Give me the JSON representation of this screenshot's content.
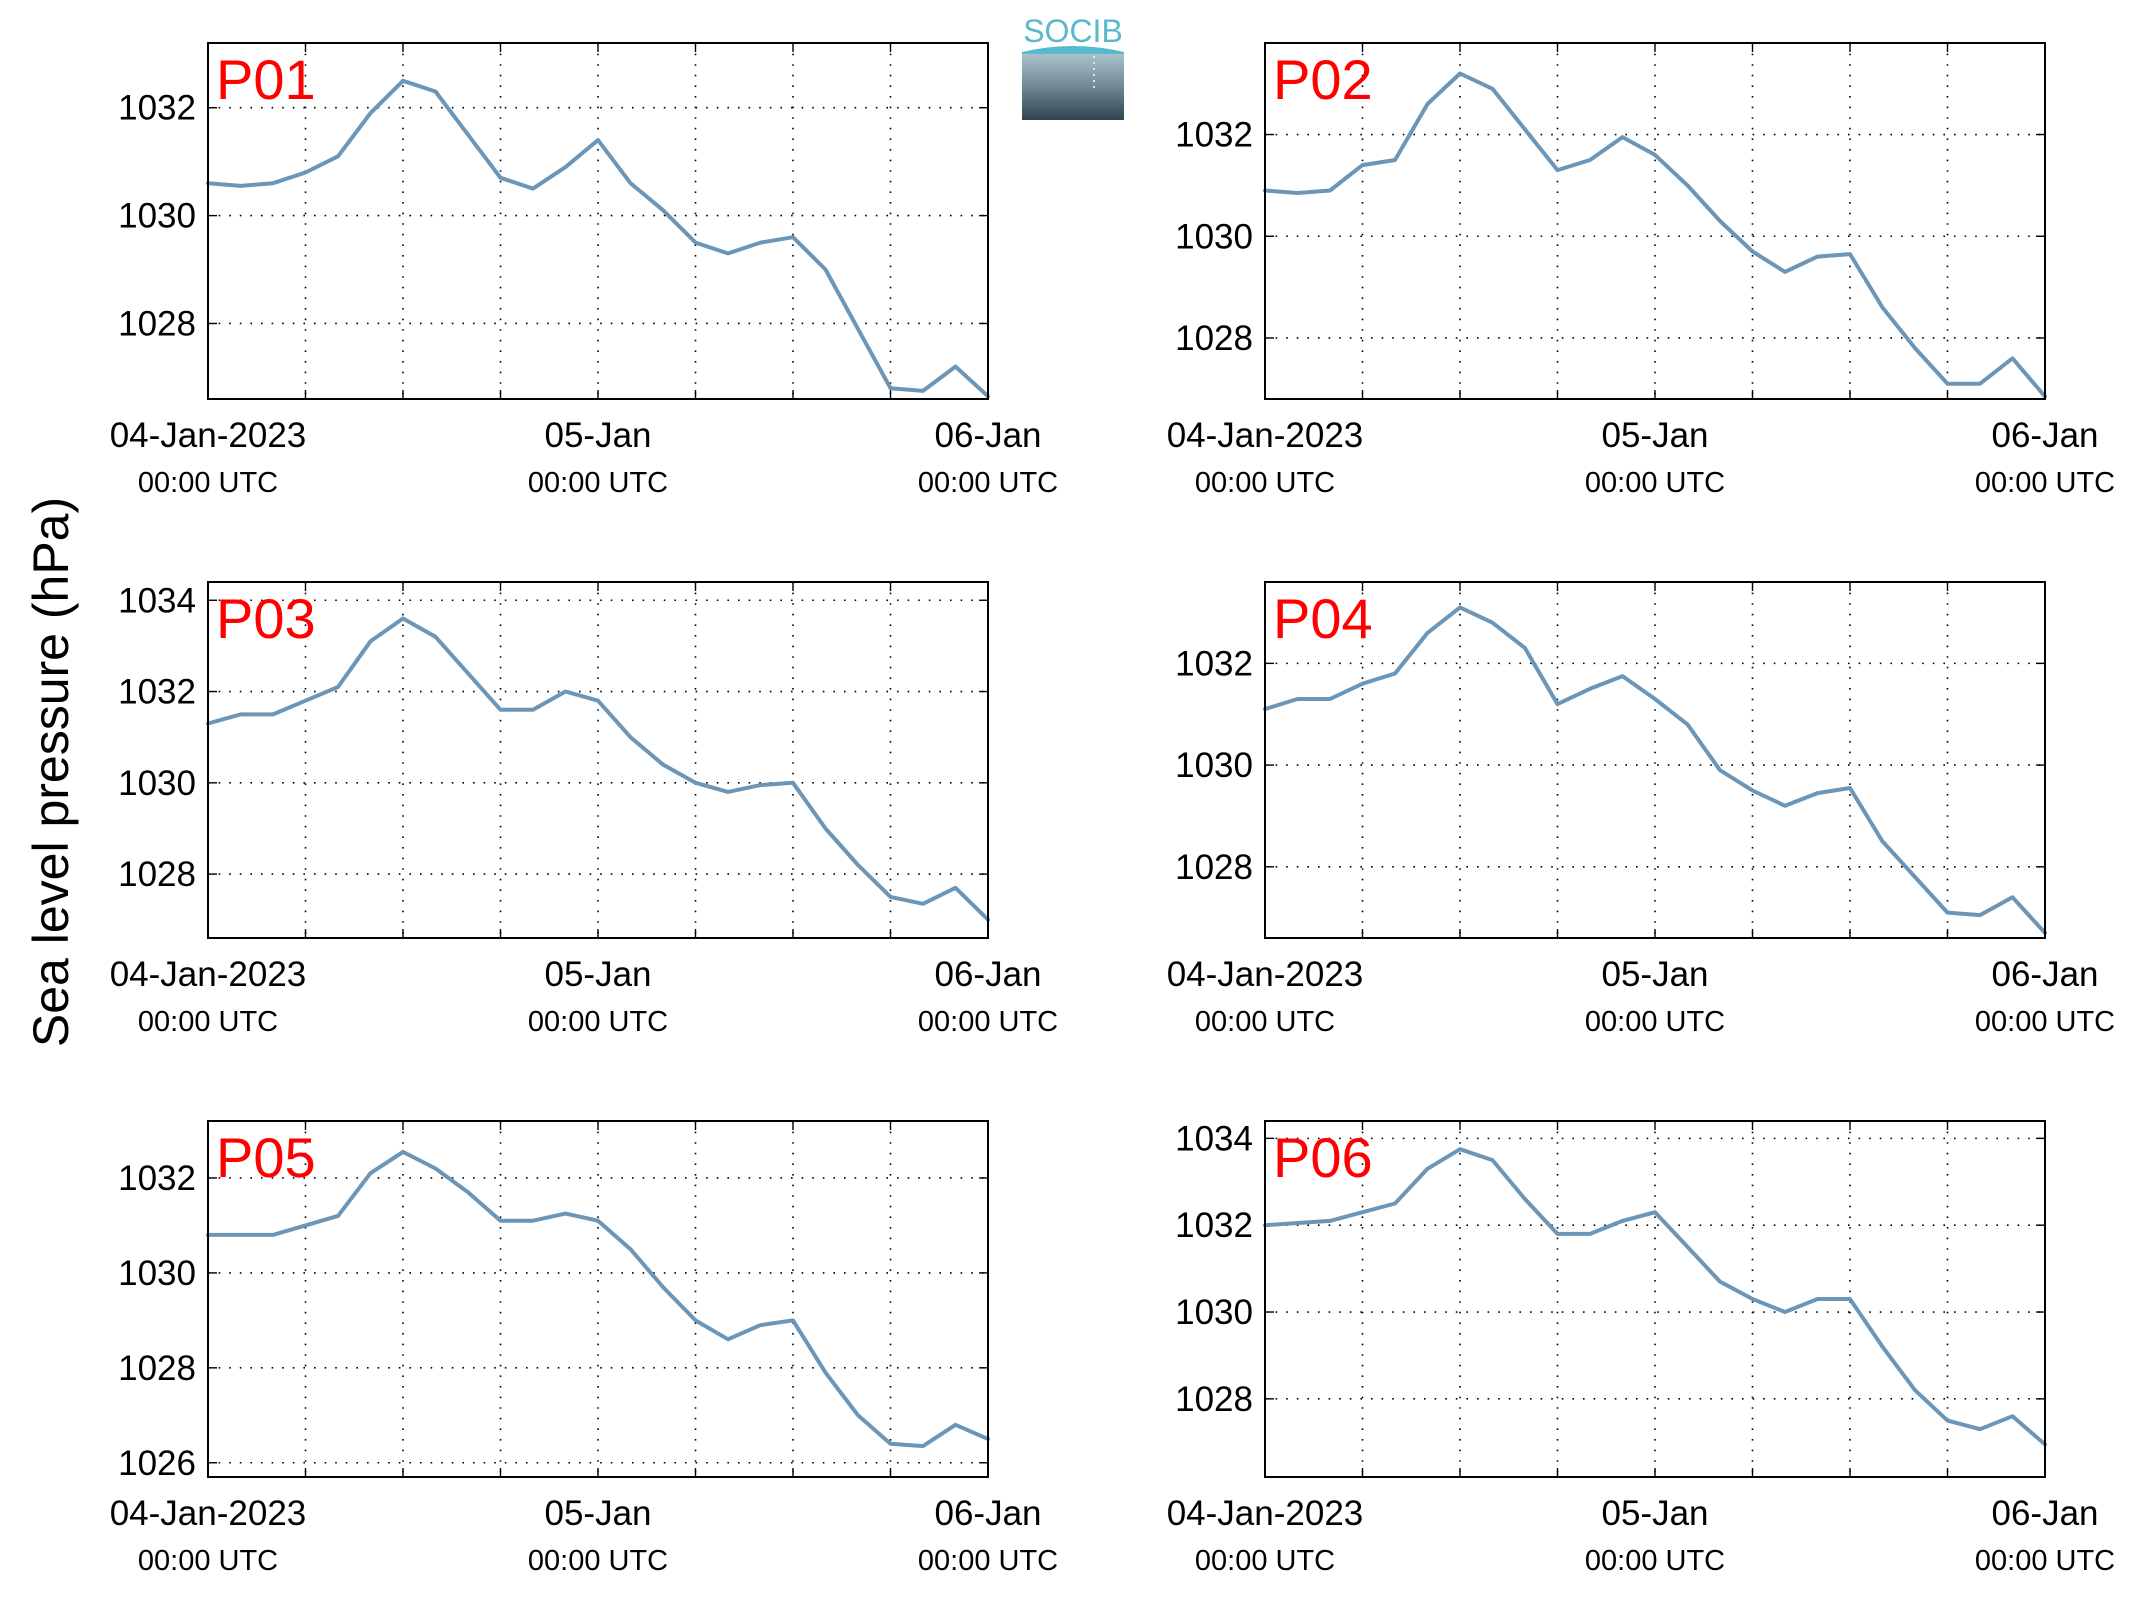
{
  "figure": {
    "ylabel": "Sea level pressure (hPa)",
    "logo_text": "SOCIB",
    "line_color": "#6c96b8",
    "label_color": "#ff0000"
  },
  "chart_data": [
    {
      "type": "line",
      "panel_label": "P01",
      "xlim": [
        "2023-01-04T00:00",
        "2023-01-06T00:00"
      ],
      "ylim": [
        1026.6,
        1033.2
      ],
      "yticks": [
        1028,
        1030,
        1032
      ],
      "xtick_labels": [
        {
          "date": "2023-01-04T00:00",
          "line1": "04-Jan-2023",
          "line2": "00:00 UTC"
        },
        {
          "date": "2023-01-05T00:00",
          "line1": "05-Jan",
          "line2": "00:00 UTC"
        },
        {
          "date": "2023-01-06T00:00",
          "line1": "06-Jan",
          "line2": "00:00 UTC"
        }
      ],
      "grid": true,
      "series": [
        {
          "x": [
            "2023-01-04T00:00",
            "2023-01-04T02:00",
            "2023-01-04T04:00",
            "2023-01-04T06:00",
            "2023-01-04T08:00",
            "2023-01-04T10:00",
            "2023-01-04T12:00",
            "2023-01-04T14:00",
            "2023-01-04T16:00",
            "2023-01-04T18:00",
            "2023-01-04T20:00",
            "2023-01-04T22:00",
            "2023-01-05T00:00",
            "2023-01-05T02:00",
            "2023-01-05T04:00",
            "2023-01-05T06:00",
            "2023-01-05T08:00",
            "2023-01-05T10:00",
            "2023-01-05T12:00",
            "2023-01-05T14:00",
            "2023-01-05T16:00",
            "2023-01-05T18:00",
            "2023-01-05T20:00",
            "2023-01-05T22:00",
            "2023-01-06T00:00"
          ],
          "values": [
            1030.6,
            1030.55,
            1030.6,
            1030.8,
            1031.1,
            1031.9,
            1032.5,
            1032.3,
            1031.5,
            1030.7,
            1030.5,
            1030.9,
            1031.4,
            1030.6,
            1030.1,
            1029.5,
            1029.3,
            1029.5,
            1029.6,
            1029.0,
            1027.9,
            1026.8,
            1026.75,
            1027.2,
            1026.65
          ]
        }
      ]
    },
    {
      "type": "line",
      "panel_label": "P02",
      "xlim": [
        "2023-01-04T00:00",
        "2023-01-06T00:00"
      ],
      "ylim": [
        1026.8,
        1033.8
      ],
      "yticks": [
        1028,
        1030,
        1032
      ],
      "xtick_labels": [
        {
          "date": "2023-01-04T00:00",
          "line1": "04-Jan-2023",
          "line2": "00:00 UTC"
        },
        {
          "date": "2023-01-05T00:00",
          "line1": "05-Jan",
          "line2": "00:00 UTC"
        },
        {
          "date": "2023-01-06T00:00",
          "line1": "06-Jan",
          "line2": "00:00 UTC"
        }
      ],
      "grid": true,
      "series": [
        {
          "x": [
            "2023-01-04T00:00",
            "2023-01-04T02:00",
            "2023-01-04T04:00",
            "2023-01-04T06:00",
            "2023-01-04T08:00",
            "2023-01-04T10:00",
            "2023-01-04T12:00",
            "2023-01-04T14:00",
            "2023-01-04T16:00",
            "2023-01-04T18:00",
            "2023-01-04T20:00",
            "2023-01-04T22:00",
            "2023-01-05T00:00",
            "2023-01-05T02:00",
            "2023-01-05T04:00",
            "2023-01-05T06:00",
            "2023-01-05T08:00",
            "2023-01-05T10:00",
            "2023-01-05T12:00",
            "2023-01-05T14:00",
            "2023-01-05T16:00",
            "2023-01-05T18:00",
            "2023-01-05T20:00",
            "2023-01-05T22:00",
            "2023-01-06T00:00"
          ],
          "values": [
            1030.9,
            1030.85,
            1030.9,
            1031.4,
            1031.5,
            1032.6,
            1033.2,
            1032.9,
            1032.1,
            1031.3,
            1031.5,
            1031.95,
            1031.6,
            1031.0,
            1030.3,
            1029.7,
            1029.3,
            1029.6,
            1029.65,
            1028.6,
            1027.8,
            1027.1,
            1027.1,
            1027.6,
            1026.85
          ]
        }
      ]
    },
    {
      "type": "line",
      "panel_label": "P03",
      "xlim": [
        "2023-01-04T00:00",
        "2023-01-06T00:00"
      ],
      "ylim": [
        1026.6,
        1034.4
      ],
      "yticks": [
        1028,
        1030,
        1032,
        1034
      ],
      "xtick_labels": [
        {
          "date": "2023-01-04T00:00",
          "line1": "04-Jan-2023",
          "line2": "00:00 UTC"
        },
        {
          "date": "2023-01-05T00:00",
          "line1": "05-Jan",
          "line2": "00:00 UTC"
        },
        {
          "date": "2023-01-06T00:00",
          "line1": "06-Jan",
          "line2": "00:00 UTC"
        }
      ],
      "grid": true,
      "series": [
        {
          "x": [
            "2023-01-04T00:00",
            "2023-01-04T02:00",
            "2023-01-04T04:00",
            "2023-01-04T06:00",
            "2023-01-04T08:00",
            "2023-01-04T10:00",
            "2023-01-04T12:00",
            "2023-01-04T14:00",
            "2023-01-04T16:00",
            "2023-01-04T18:00",
            "2023-01-04T20:00",
            "2023-01-04T22:00",
            "2023-01-05T00:00",
            "2023-01-05T02:00",
            "2023-01-05T04:00",
            "2023-01-05T06:00",
            "2023-01-05T08:00",
            "2023-01-05T10:00",
            "2023-01-05T12:00",
            "2023-01-05T14:00",
            "2023-01-05T16:00",
            "2023-01-05T18:00",
            "2023-01-05T20:00",
            "2023-01-05T22:00",
            "2023-01-06T00:00"
          ],
          "values": [
            1031.3,
            1031.5,
            1031.5,
            1031.8,
            1032.1,
            1033.1,
            1033.6,
            1033.2,
            1032.4,
            1031.6,
            1031.6,
            1032.0,
            1031.8,
            1031.0,
            1030.4,
            1030.0,
            1029.8,
            1029.95,
            1030.0,
            1029.0,
            1028.2,
            1027.5,
            1027.35,
            1027.7,
            1027.0
          ]
        }
      ]
    },
    {
      "type": "line",
      "panel_label": "P04",
      "xlim": [
        "2023-01-04T00:00",
        "2023-01-06T00:00"
      ],
      "ylim": [
        1026.6,
        1033.6
      ],
      "yticks": [
        1028,
        1030,
        1032
      ],
      "xtick_labels": [
        {
          "date": "2023-01-04T00:00",
          "line1": "04-Jan-2023",
          "line2": "00:00 UTC"
        },
        {
          "date": "2023-01-05T00:00",
          "line1": "05-Jan",
          "line2": "00:00 UTC"
        },
        {
          "date": "2023-01-06T00:00",
          "line1": "06-Jan",
          "line2": "00:00 UTC"
        }
      ],
      "grid": true,
      "series": [
        {
          "x": [
            "2023-01-04T00:00",
            "2023-01-04T02:00",
            "2023-01-04T04:00",
            "2023-01-04T06:00",
            "2023-01-04T08:00",
            "2023-01-04T10:00",
            "2023-01-04T12:00",
            "2023-01-04T14:00",
            "2023-01-04T16:00",
            "2023-01-04T18:00",
            "2023-01-04T20:00",
            "2023-01-04T22:00",
            "2023-01-05T00:00",
            "2023-01-05T02:00",
            "2023-01-05T04:00",
            "2023-01-05T06:00",
            "2023-01-05T08:00",
            "2023-01-05T10:00",
            "2023-01-05T12:00",
            "2023-01-05T14:00",
            "2023-01-05T16:00",
            "2023-01-05T18:00",
            "2023-01-05T20:00",
            "2023-01-05T22:00",
            "2023-01-06T00:00"
          ],
          "values": [
            1031.1,
            1031.3,
            1031.3,
            1031.6,
            1031.8,
            1032.6,
            1033.1,
            1032.8,
            1032.3,
            1031.2,
            1031.5,
            1031.75,
            1031.3,
            1030.8,
            1029.9,
            1029.5,
            1029.2,
            1029.45,
            1029.55,
            1028.5,
            1027.8,
            1027.1,
            1027.05,
            1027.4,
            1026.7
          ]
        }
      ]
    },
    {
      "type": "line",
      "panel_label": "P05",
      "xlim": [
        "2023-01-04T00:00",
        "2023-01-06T00:00"
      ],
      "ylim": [
        1025.7,
        1033.2
      ],
      "yticks": [
        1026,
        1028,
        1030,
        1032
      ],
      "xtick_labels": [
        {
          "date": "2023-01-04T00:00",
          "line1": "04-Jan-2023",
          "line2": "00:00 UTC"
        },
        {
          "date": "2023-01-05T00:00",
          "line1": "05-Jan",
          "line2": "00:00 UTC"
        },
        {
          "date": "2023-01-06T00:00",
          "line1": "06-Jan",
          "line2": "00:00 UTC"
        }
      ],
      "grid": true,
      "series": [
        {
          "x": [
            "2023-01-04T00:00",
            "2023-01-04T02:00",
            "2023-01-04T04:00",
            "2023-01-04T06:00",
            "2023-01-04T08:00",
            "2023-01-04T10:00",
            "2023-01-04T12:00",
            "2023-01-04T14:00",
            "2023-01-04T16:00",
            "2023-01-04T18:00",
            "2023-01-04T20:00",
            "2023-01-04T22:00",
            "2023-01-05T00:00",
            "2023-01-05T02:00",
            "2023-01-05T04:00",
            "2023-01-05T06:00",
            "2023-01-05T08:00",
            "2023-01-05T10:00",
            "2023-01-05T12:00",
            "2023-01-05T14:00",
            "2023-01-05T16:00",
            "2023-01-05T18:00",
            "2023-01-05T20:00",
            "2023-01-05T22:00",
            "2023-01-06T00:00"
          ],
          "values": [
            1030.8,
            1030.8,
            1030.8,
            1031.0,
            1031.2,
            1032.1,
            1032.55,
            1032.2,
            1031.7,
            1031.1,
            1031.1,
            1031.25,
            1031.1,
            1030.5,
            1029.7,
            1029.0,
            1028.6,
            1028.9,
            1029.0,
            1027.9,
            1027.0,
            1026.4,
            1026.35,
            1026.8,
            1026.5
          ]
        }
      ]
    },
    {
      "type": "line",
      "panel_label": "P06",
      "xlim": [
        "2023-01-04T00:00",
        "2023-01-06T00:00"
      ],
      "ylim": [
        1026.2,
        1034.4
      ],
      "yticks": [
        1028,
        1030,
        1032,
        1034
      ],
      "xtick_labels": [
        {
          "date": "2023-01-04T00:00",
          "line1": "04-Jan-2023",
          "line2": "00:00 UTC"
        },
        {
          "date": "2023-01-05T00:00",
          "line1": "05-Jan",
          "line2": "00:00 UTC"
        },
        {
          "date": "2023-01-06T00:00",
          "line1": "06-Jan",
          "line2": "00:00 UTC"
        }
      ],
      "grid": true,
      "series": [
        {
          "x": [
            "2023-01-04T00:00",
            "2023-01-04T02:00",
            "2023-01-04T04:00",
            "2023-01-04T06:00",
            "2023-01-04T08:00",
            "2023-01-04T10:00",
            "2023-01-04T12:00",
            "2023-01-04T14:00",
            "2023-01-04T16:00",
            "2023-01-04T18:00",
            "2023-01-04T20:00",
            "2023-01-04T22:00",
            "2023-01-05T00:00",
            "2023-01-05T02:00",
            "2023-01-05T04:00",
            "2023-01-05T06:00",
            "2023-01-05T08:00",
            "2023-01-05T10:00",
            "2023-01-05T12:00",
            "2023-01-05T14:00",
            "2023-01-05T16:00",
            "2023-01-05T18:00",
            "2023-01-05T20:00",
            "2023-01-05T22:00",
            "2023-01-06T00:00"
          ],
          "values": [
            1032.0,
            1032.05,
            1032.1,
            1032.3,
            1032.5,
            1033.3,
            1033.75,
            1033.5,
            1032.6,
            1031.8,
            1031.8,
            1032.1,
            1032.3,
            1031.5,
            1030.7,
            1030.3,
            1030.0,
            1030.3,
            1030.3,
            1029.2,
            1028.2,
            1027.5,
            1027.3,
            1027.6,
            1026.95
          ]
        }
      ]
    }
  ]
}
